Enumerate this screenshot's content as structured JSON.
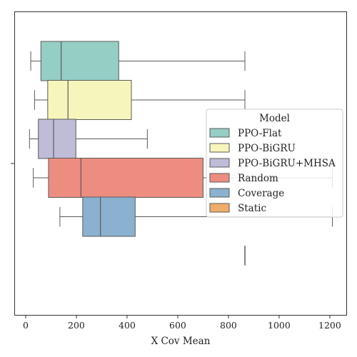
{
  "chart_data": {
    "type": "boxplot",
    "orientation": "horizontal",
    "xlabel": "X Cov Mean",
    "ylabel": "",
    "xlim": [
      -45,
      1265
    ],
    "xticks": [
      0,
      200,
      400,
      600,
      800,
      1000,
      1200
    ],
    "grid": false,
    "legend": {
      "title": "Model",
      "placement": "center-right",
      "entries": [
        "PPO-Flat",
        "PPO-BiGRU",
        "PPO-BiGRU+MHSA",
        "Random",
        "Coverage",
        "Static"
      ]
    },
    "series": [
      {
        "name": "PPO-Flat",
        "color": "#95cec4",
        "whisker_low": 20,
        "q1": 60,
        "median": 140,
        "q3": 367,
        "whisker_high": 865
      },
      {
        "name": "PPO-BiGRU",
        "color": "#f6f6bc",
        "whisker_low": 35,
        "q1": 87,
        "median": 167,
        "q3": 417,
        "whisker_high": 865
      },
      {
        "name": "PPO-BiGRU+MHSA",
        "color": "#bfbcd8",
        "whisker_low": 15,
        "q1": 50,
        "median": 110,
        "q3": 198,
        "whisker_high": 480
      },
      {
        "name": "Random",
        "color": "#ec8d80",
        "whisker_low": 30,
        "q1": 90,
        "median": 218,
        "q3": 700,
        "whisker_high": 1210
      },
      {
        "name": "Coverage",
        "color": "#8ab1cf",
        "whisker_low": 135,
        "q1": 225,
        "median": 295,
        "q3": 432,
        "whisker_high": 1210
      },
      {
        "name": "Static",
        "color": "#f0ad6a",
        "whisker_low": 865,
        "q1": 865,
        "median": 865,
        "q3": 865,
        "whisker_high": 865
      }
    ]
  }
}
